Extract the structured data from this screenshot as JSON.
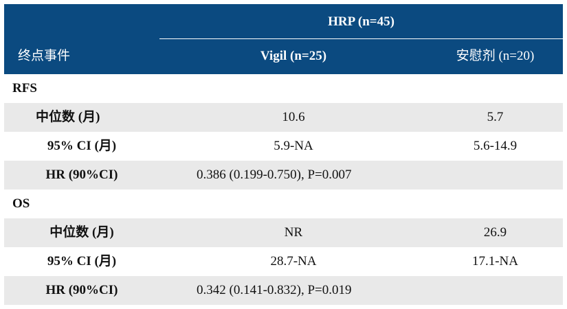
{
  "table": {
    "header": {
      "group_label": "HRP (n=45)",
      "col0": "终点事件",
      "col1": "Vigil (n=25)",
      "col2": "安慰剂  (n=20)"
    },
    "sections": [
      {
        "title": "RFS",
        "rows": [
          {
            "label": "中位数  (月)",
            "vigil": "10.6",
            "placebo": "5.7"
          },
          {
            "label": "95% CI (月)",
            "vigil": "5.9-NA",
            "placebo": "5.6-14.9"
          },
          {
            "label": "HR (90%CI)",
            "merged": "0.386 (0.199-0.750), P=0.007"
          }
        ]
      },
      {
        "title": "OS",
        "rows": [
          {
            "label": "中位数  (月)",
            "vigil": "NR",
            "placebo": "26.9"
          },
          {
            "label": "95% CI (月)",
            "vigil": "28.7-NA",
            "placebo": "17.1-NA"
          },
          {
            "label": "HR (90%CI)",
            "merged": "0.342 (0.141-0.832), P=0.019"
          }
        ]
      }
    ]
  },
  "colors": {
    "header_bg": "#0b4a80",
    "header_text": "#ffffff",
    "row_shade": "#e9e9e9",
    "row_plain": "#ffffff"
  }
}
